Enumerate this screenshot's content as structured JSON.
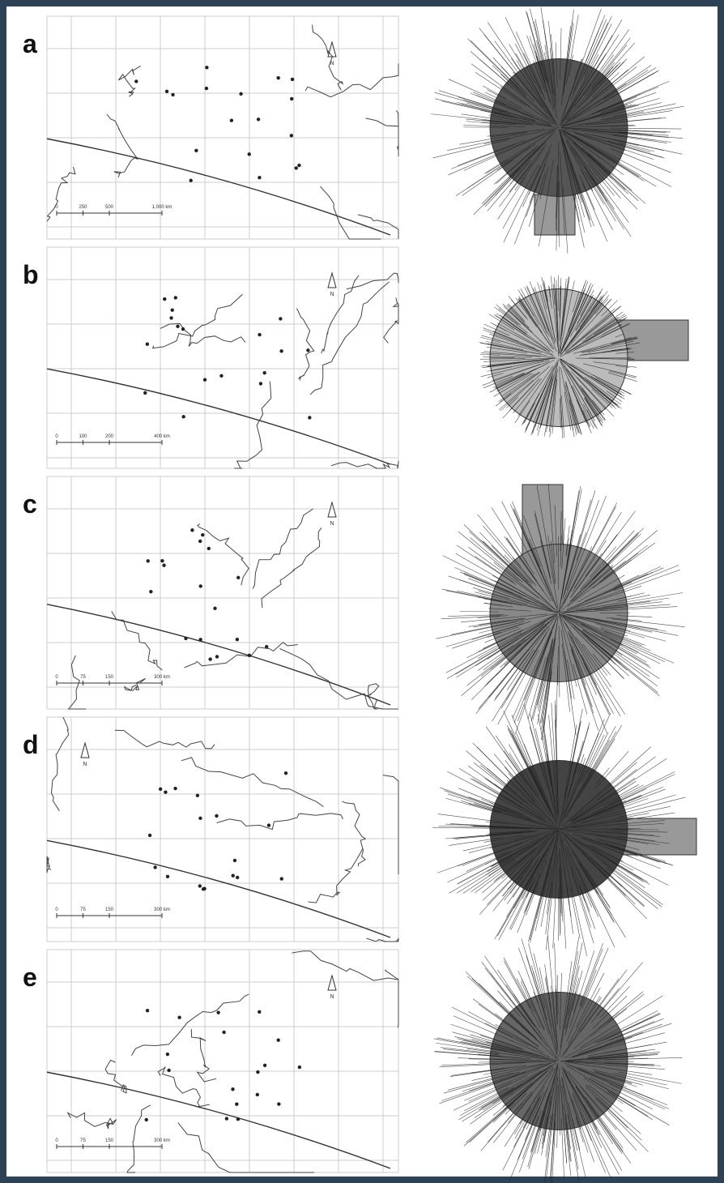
{
  "panels": [
    {
      "label": "a",
      "north": "N",
      "scale": [
        "0",
        "250",
        "500",
        "1,000 km"
      ]
    },
    {
      "label": "b",
      "north": "N",
      "scale": [
        "0",
        "100",
        "200",
        "400 km"
      ]
    },
    {
      "label": "c",
      "north": "N",
      "scale": [
        "0",
        "75",
        "150",
        "300 km"
      ]
    },
    {
      "label": "d",
      "north": "N",
      "scale": [
        "0",
        "75",
        "150",
        "300 km"
      ]
    },
    {
      "label": "e",
      "north": "N",
      "scale": [
        "0",
        "75",
        "150",
        "300 km"
      ]
    }
  ]
}
